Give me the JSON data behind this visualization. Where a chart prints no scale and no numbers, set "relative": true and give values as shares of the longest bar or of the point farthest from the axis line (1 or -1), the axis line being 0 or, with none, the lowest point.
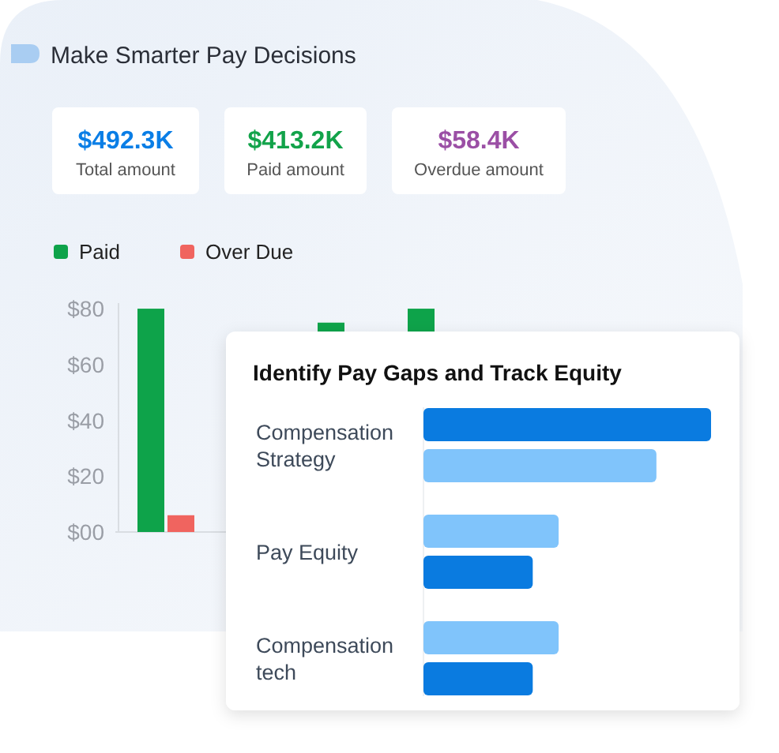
{
  "chart_data": [
    {
      "type": "other",
      "title": "Make Smarter Pay Decisions",
      "annotations": [
        "$492.3K",
        "Total amount",
        "$413.2K",
        "Paid amount",
        "$58.4K",
        "Overdue amount"
      ]
    },
    {
      "type": "bar",
      "categories": [
        null,
        null,
        null,
        null
      ],
      "series": [
        {
          "name": "Paid",
          "color": "#0ea34a",
          "values": [
            80,
            null,
            75,
            80
          ]
        },
        {
          "name": "Over Due",
          "color": "#f0645f",
          "values": [
            6,
            null,
            null,
            null
          ]
        }
      ],
      "ylim": [
        0,
        82
      ],
      "yticks": [
        {
          "value": 0,
          "label": "$00"
        },
        {
          "value": 20,
          "label": "$20"
        },
        {
          "value": 40,
          "label": "$40"
        },
        {
          "value": 60,
          "label": "$60"
        },
        {
          "value": 80,
          "label": "$80"
        }
      ],
      "legend": "top left",
      "grid": false
    },
    {
      "type": "bar",
      "orientation": "horizontal",
      "relative": true,
      "title": "Identify Pay Gaps and Track Equity",
      "categories": [
        "Compensation Strategy",
        "Pay Equity",
        "Compensation tech"
      ],
      "series": [
        {
          "colors": [
            "#0a7be0",
            "#80c4fb",
            "#80c4fb"
          ],
          "values": [
            1,
            0.47,
            0.47
          ]
        },
        {
          "colors": [
            "#80c4fb",
            "#0a7be0",
            "#0a7be0"
          ],
          "values": [
            0.81,
            0.38,
            0.38
          ]
        }
      ]
    }
  ]
}
